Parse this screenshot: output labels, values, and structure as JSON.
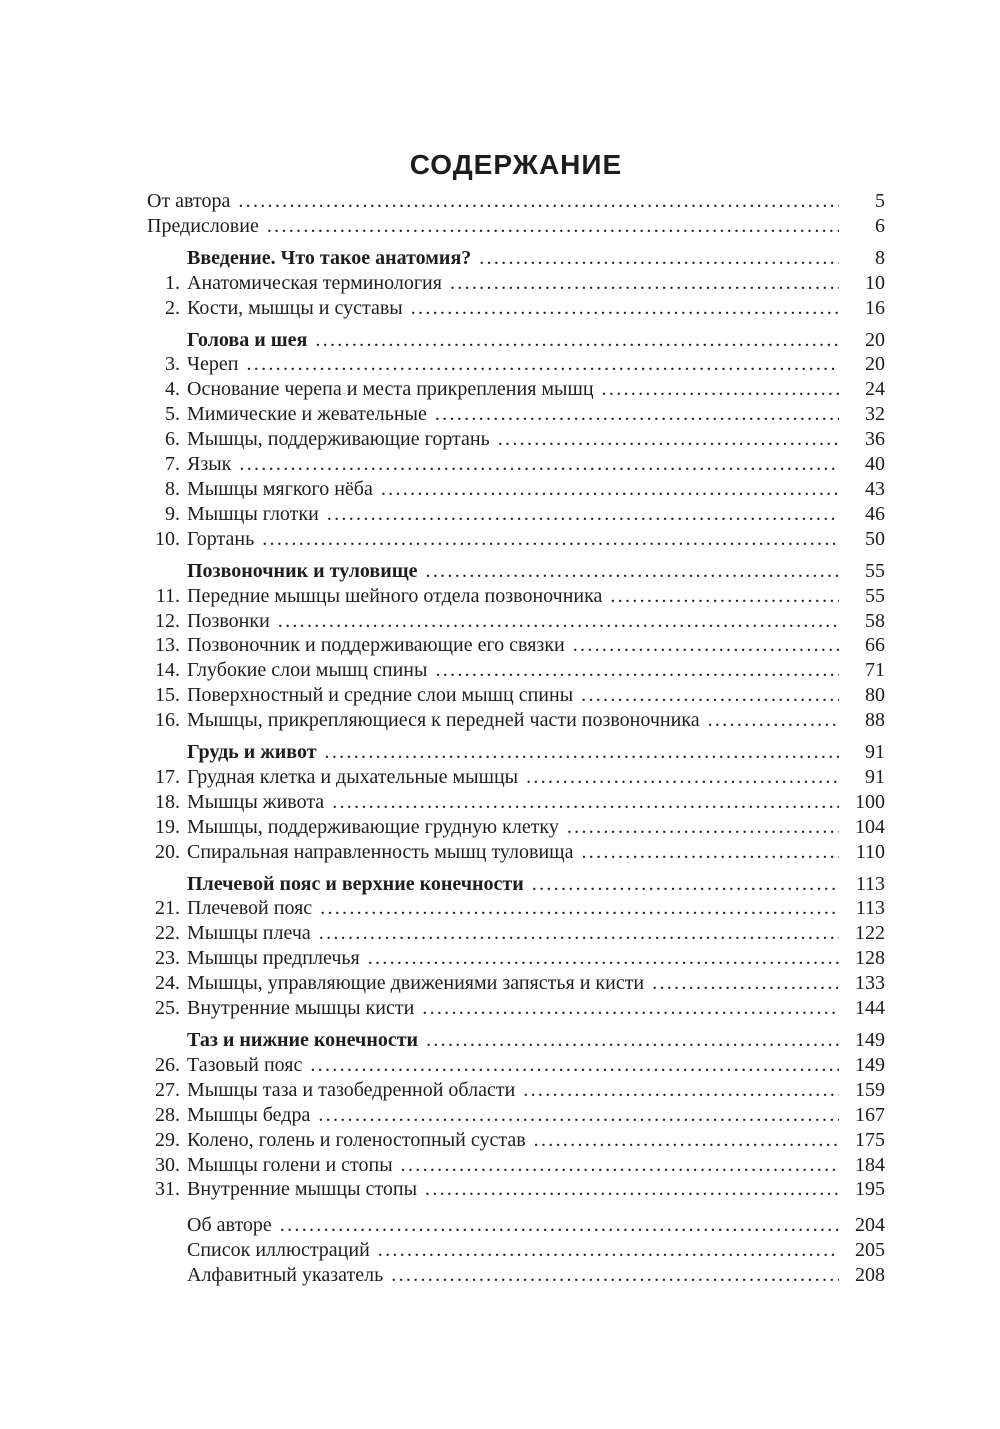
{
  "page": {
    "title": "СОДЕРЖАНИЕ",
    "text_color": "#1d1d1b",
    "background_color": "#ffffff"
  },
  "toc": {
    "entries": [
      {
        "type": "plain",
        "num": "",
        "label": "От автора",
        "page": "5"
      },
      {
        "type": "plain",
        "num": "",
        "label": "Предисловие",
        "page": "6"
      },
      {
        "type": "section",
        "num": "",
        "label": "Введение. Что такое анатомия?",
        "page": "8"
      },
      {
        "type": "numbered",
        "num": "1.",
        "label": "Анатомическая терминология",
        "page": "10"
      },
      {
        "type": "numbered",
        "num": "2.",
        "label": "Кости, мышцы и суставы",
        "page": "16"
      },
      {
        "type": "section",
        "num": "",
        "label": "Голова и шея",
        "page": "20"
      },
      {
        "type": "numbered",
        "num": "3.",
        "label": "Череп",
        "page": "20"
      },
      {
        "type": "numbered",
        "num": "4.",
        "label": "Основание черепа и места прикрепления мышц",
        "page": "24"
      },
      {
        "type": "numbered",
        "num": "5.",
        "label": "Мимические и жевательные",
        "page": "32"
      },
      {
        "type": "numbered",
        "num": "6.",
        "label": "Мышцы, поддерживающие гортань",
        "page": "36"
      },
      {
        "type": "numbered",
        "num": "7.",
        "label": "Язык",
        "page": "40"
      },
      {
        "type": "numbered",
        "num": "8.",
        "label": "Мышцы мягкого нёба",
        "page": "43"
      },
      {
        "type": "numbered",
        "num": "9.",
        "label": "Мышцы глотки",
        "page": "46"
      },
      {
        "type": "numbered",
        "num": "10.",
        "label": "Гортань",
        "page": "50"
      },
      {
        "type": "section",
        "num": "",
        "label": "Позвоночник и туловище",
        "page": "55"
      },
      {
        "type": "numbered",
        "num": "11.",
        "label": "Передние мышцы шейного отдела позвоночника",
        "page": "55"
      },
      {
        "type": "numbered",
        "num": "12.",
        "label": "Позвонки",
        "page": "58"
      },
      {
        "type": "numbered",
        "num": "13.",
        "label": "Позвоночник и поддерживающие его связки",
        "page": "66"
      },
      {
        "type": "numbered",
        "num": "14.",
        "label": "Глубокие слои мышц спины",
        "page": "71"
      },
      {
        "type": "numbered",
        "num": "15.",
        "label": "Поверхностный и средние слои мышц спины",
        "page": "80"
      },
      {
        "type": "numbered",
        "num": "16.",
        "label": "Мышцы, прикрепляющиеся к передней части позвоночника",
        "page": "88"
      },
      {
        "type": "section",
        "num": "",
        "label": "Грудь и живот",
        "page": "91"
      },
      {
        "type": "numbered",
        "num": "17.",
        "label": "Грудная клетка и дыхательные мышцы",
        "page": "91"
      },
      {
        "type": "numbered",
        "num": "18.",
        "label": "Мышцы живота",
        "page": "100"
      },
      {
        "type": "numbered",
        "num": "19.",
        "label": "Мышцы, поддерживающие грудную клетку",
        "page": "104"
      },
      {
        "type": "numbered",
        "num": "20.",
        "label": "Спиральная направленность мышц туловища",
        "page": "110"
      },
      {
        "type": "section",
        "num": "",
        "label": "Плечевой пояс и верхние конечности",
        "page": "113"
      },
      {
        "type": "numbered",
        "num": "21.",
        "label": "Плечевой пояс",
        "page": "113"
      },
      {
        "type": "numbered",
        "num": "22.",
        "label": "Мышцы плеча",
        "page": "122"
      },
      {
        "type": "numbered",
        "num": "23.",
        "label": "Мышцы предплечья",
        "page": "128"
      },
      {
        "type": "numbered",
        "num": "24.",
        "label": "Мышцы, управляющие движениями запястья и кисти",
        "page": "133"
      },
      {
        "type": "numbered",
        "num": "25.",
        "label": "Внутренние мышцы кисти",
        "page": "144"
      },
      {
        "type": "section",
        "num": "",
        "label": "Таз и нижние конечности",
        "page": "149"
      },
      {
        "type": "numbered",
        "num": "26.",
        "label": "Тазовый пояс",
        "page": "149"
      },
      {
        "type": "numbered",
        "num": "27.",
        "label": "Мышцы таза и тазобедренной области",
        "page": "159"
      },
      {
        "type": "numbered",
        "num": "28.",
        "label": "Мышцы бедра",
        "page": "167"
      },
      {
        "type": "numbered",
        "num": "29.",
        "label": "Колено, голень и голеностопный сустав",
        "page": "175"
      },
      {
        "type": "numbered",
        "num": "30.",
        "label": "Мышцы голени и стопы",
        "page": "184"
      },
      {
        "type": "numbered",
        "num": "31.",
        "label": "Внутренние мышцы стопы",
        "page": "195"
      },
      {
        "type": "back",
        "num": "",
        "label": "Об авторе",
        "page": "204"
      },
      {
        "type": "back",
        "num": "",
        "label": "Список иллюстраций",
        "page": "205"
      },
      {
        "type": "back",
        "num": "",
        "label": "Алфавитный указатель",
        "page": "208"
      }
    ]
  }
}
